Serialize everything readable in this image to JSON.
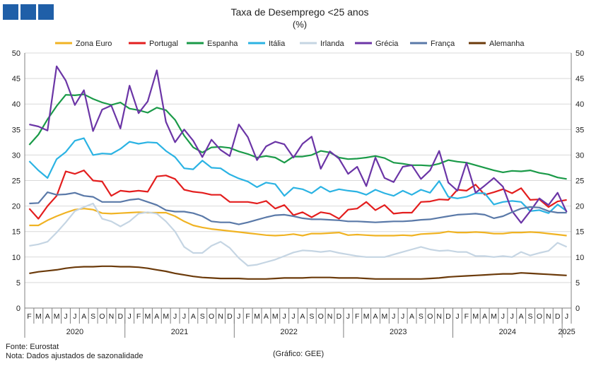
{
  "chart_data": {
    "type": "line",
    "title": "Taxa de Desemprego <25 anos",
    "subtitle": "(%)",
    "ylim": [
      0,
      50
    ],
    "yticks": [
      0,
      5,
      10,
      15,
      20,
      25,
      30,
      35,
      40,
      45,
      50
    ],
    "months": [
      "F",
      "M",
      "A",
      "M",
      "J",
      "J",
      "A",
      "S",
      "O",
      "N",
      "D",
      "J",
      "F",
      "M",
      "A",
      "M",
      "J",
      "J",
      "A",
      "S",
      "O",
      "N",
      "D",
      "J",
      "F",
      "M",
      "A",
      "M",
      "J",
      "J",
      "A",
      "S",
      "O",
      "N",
      "D",
      "J",
      "F",
      "M",
      "A",
      "M",
      "J",
      "J",
      "A",
      "S",
      "O",
      "N",
      "D",
      "J",
      "F",
      "M",
      "A",
      "M",
      "J",
      "J",
      "A",
      "S",
      "O",
      "N",
      "D",
      "J"
    ],
    "years": [
      {
        "label": "2020",
        "start": 0,
        "end": 10
      },
      {
        "label": "2021",
        "start": 11,
        "end": 22
      },
      {
        "label": "2022",
        "start": 23,
        "end": 34
      },
      {
        "label": "2023",
        "start": 35,
        "end": 46
      },
      {
        "label": "2024",
        "start": 47,
        "end": 58
      },
      {
        "label": "2025",
        "start": 59,
        "end": 59
      }
    ],
    "series": [
      {
        "name": "Zona Euro",
        "color": "#f0b323",
        "values": [
          16.2,
          16.2,
          17.2,
          18.0,
          18.7,
          19.3,
          19.5,
          19.3,
          18.6,
          18.5,
          18.6,
          18.7,
          18.8,
          18.7,
          18.7,
          18.7,
          18.0,
          17.0,
          16.2,
          15.8,
          15.5,
          15.3,
          15.1,
          14.9,
          14.7,
          14.5,
          14.3,
          14.2,
          14.3,
          14.5,
          14.2,
          14.6,
          14.6,
          14.7,
          14.8,
          14.3,
          14.4,
          14.3,
          14.2,
          14.2,
          14.2,
          14.3,
          14.2,
          14.5,
          14.6,
          14.7,
          15.0,
          14.8,
          14.8,
          14.9,
          14.8,
          14.6,
          14.6,
          14.8,
          14.8,
          14.9,
          14.8,
          14.6,
          14.4,
          14.2
        ]
      },
      {
        "name": "Portugal",
        "color": "#e31e1e",
        "values": [
          19.5,
          17.5,
          20.0,
          22.0,
          26.8,
          26.3,
          27.0,
          25.0,
          24.8,
          22.0,
          23.0,
          22.8,
          23.0,
          22.8,
          25.8,
          26.0,
          25.3,
          23.2,
          22.8,
          22.6,
          22.2,
          22.2,
          20.8,
          20.8,
          20.8,
          20.5,
          21.0,
          19.5,
          20.2,
          18.2,
          18.8,
          17.8,
          18.8,
          18.5,
          17.5,
          19.3,
          19.5,
          20.8,
          19.2,
          20.2,
          18.5,
          18.7,
          18.7,
          20.8,
          20.9,
          21.3,
          21.2,
          23.2,
          23.0,
          24.2,
          22.2,
          22.7,
          23.3,
          22.5,
          23.5,
          21.2,
          21.3,
          19.8,
          20.9,
          21.2
        ]
      },
      {
        "name": "Espanha",
        "color": "#1a9a48",
        "values": [
          32.0,
          34.0,
          37.0,
          39.6,
          41.8,
          41.7,
          41.9,
          41.0,
          40.3,
          39.8,
          40.3,
          39.1,
          38.8,
          38.3,
          39.3,
          38.8,
          36.9,
          33.8,
          31.5,
          30.5,
          31.5,
          31.6,
          31.4,
          30.7,
          30.2,
          29.5,
          29.8,
          29.5,
          28.5,
          29.7,
          29.7,
          30.0,
          30.8,
          30.5,
          29.5,
          29.2,
          29.3,
          29.5,
          29.8,
          29.4,
          28.5,
          28.3,
          28.0,
          28.0,
          27.9,
          28.3,
          29.0,
          28.7,
          28.5,
          28.0,
          27.5,
          27.0,
          26.6,
          26.9,
          26.8,
          27.0,
          26.5,
          26.2,
          25.6,
          25.3
        ]
      },
      {
        "name": "Itália",
        "color": "#2bb3e3",
        "values": [
          28.8,
          27.0,
          25.5,
          29.2,
          30.6,
          32.8,
          33.3,
          30.0,
          30.3,
          30.2,
          31.2,
          32.6,
          32.2,
          32.5,
          32.4,
          30.8,
          29.6,
          27.4,
          27.2,
          28.9,
          27.5,
          27.4,
          26.2,
          25.4,
          24.8,
          23.7,
          24.6,
          24.3,
          22.0,
          23.6,
          23.3,
          22.5,
          23.8,
          22.8,
          23.3,
          23.0,
          22.8,
          22.2,
          23.2,
          22.5,
          22.0,
          23.0,
          22.2,
          23.2,
          22.6,
          24.9,
          21.8,
          21.5,
          21.8,
          22.5,
          22.5,
          20.3,
          20.8,
          21.0,
          20.8,
          19.0,
          19.2,
          18.6,
          20.3,
          19.0
        ]
      },
      {
        "name": "Irlanda",
        "color": "#c5d5e3",
        "values": [
          12.2,
          12.5,
          13.0,
          14.8,
          16.8,
          19.0,
          19.8,
          20.5,
          17.5,
          17.0,
          16.0,
          17.0,
          18.5,
          18.8,
          18.5,
          17.0,
          15.0,
          12.0,
          10.8,
          10.8,
          12.2,
          13.0,
          11.8,
          9.8,
          8.3,
          8.5,
          9.0,
          9.5,
          10.2,
          10.9,
          11.3,
          11.2,
          11.0,
          11.2,
          10.8,
          10.5,
          10.2,
          10.0,
          10.0,
          10.0,
          10.5,
          11.0,
          11.5,
          12.0,
          11.5,
          11.2,
          11.3,
          11.0,
          11.0,
          10.2,
          10.2,
          10.0,
          10.2,
          10.0,
          11.0,
          10.3,
          10.8,
          11.2,
          12.8,
          12.0
        ]
      },
      {
        "name": "Grécia",
        "color": "#6b35a6",
        "values": [
          36.0,
          35.6,
          34.8,
          47.4,
          44.6,
          39.8,
          42.7,
          34.7,
          38.9,
          39.7,
          35.2,
          43.6,
          38.2,
          40.5,
          46.6,
          36.5,
          32.5,
          35.0,
          32.8,
          29.6,
          33.0,
          31.0,
          29.8,
          36.0,
          33.5,
          29.0,
          31.7,
          32.6,
          32.1,
          29.5,
          32.2,
          33.6,
          27.3,
          30.7,
          29.3,
          26.3,
          27.7,
          23.9,
          29.5,
          25.5,
          24.7,
          27.7,
          28.0,
          25.3,
          27.0,
          30.8,
          24.6,
          23.0,
          28.5,
          22.6,
          24.0,
          25.5,
          23.8,
          19.0,
          16.7,
          19.0,
          21.5,
          20.2,
          22.6,
          18.8
        ]
      },
      {
        "name": "França",
        "color": "#5a79a8",
        "values": [
          20.5,
          20.6,
          22.7,
          22.2,
          22.3,
          22.6,
          22.0,
          21.8,
          20.8,
          20.8,
          20.8,
          21.2,
          21.4,
          20.8,
          20.2,
          19.2,
          18.9,
          18.9,
          18.6,
          18.0,
          17.0,
          16.8,
          16.8,
          16.4,
          16.8,
          17.3,
          17.8,
          18.2,
          18.3,
          18.0,
          17.6,
          17.4,
          17.4,
          17.3,
          17.2,
          17.0,
          17.0,
          16.9,
          16.8,
          16.9,
          17.0,
          17.0,
          17.1,
          17.3,
          17.4,
          17.7,
          18.0,
          18.3,
          18.4,
          18.5,
          18.3,
          17.6,
          18.0,
          18.8,
          19.5,
          19.8,
          19.7,
          19.0,
          18.7,
          18.7
        ]
      },
      {
        "name": "Alemanha",
        "color": "#6b3a0a",
        "values": [
          6.8,
          7.1,
          7.3,
          7.5,
          7.8,
          8.0,
          8.1,
          8.1,
          8.2,
          8.2,
          8.1,
          8.1,
          8.0,
          7.8,
          7.5,
          7.2,
          6.8,
          6.5,
          6.2,
          6.0,
          5.9,
          5.8,
          5.8,
          5.8,
          5.7,
          5.7,
          5.7,
          5.8,
          5.9,
          5.9,
          5.9,
          6.0,
          6.0,
          6.0,
          5.9,
          5.9,
          5.9,
          5.8,
          5.7,
          5.7,
          5.7,
          5.7,
          5.7,
          5.7,
          5.8,
          5.9,
          6.1,
          6.2,
          6.3,
          6.4,
          6.5,
          6.6,
          6.7,
          6.7,
          6.9,
          6.8,
          6.7,
          6.6,
          6.5,
          6.4
        ]
      }
    ]
  },
  "footer": {
    "source": "Fonte: Eurostat",
    "note": "Nota: Dados ajustados de sazonalidade",
    "credit": "(Gráfico: GEE)"
  }
}
